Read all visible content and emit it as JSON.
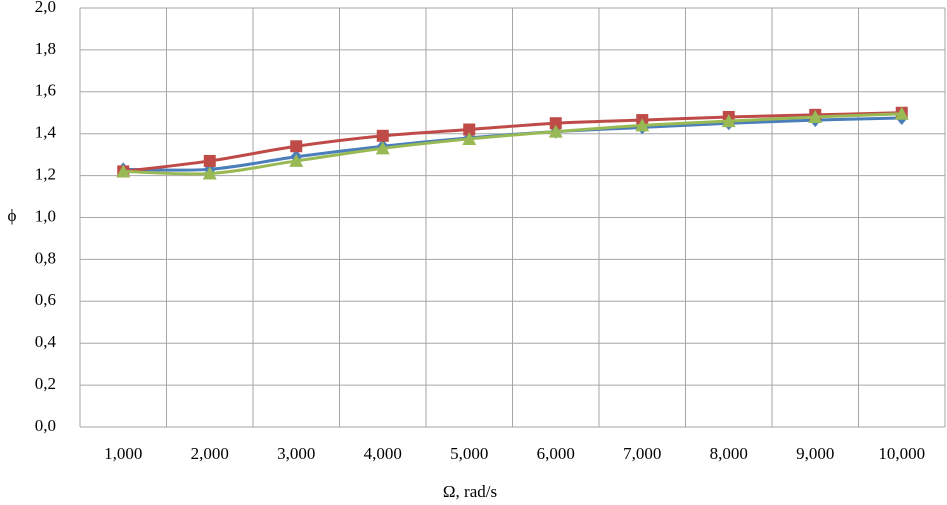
{
  "chart_data": {
    "type": "line",
    "x_label": "Ω, rad/s",
    "y_label": "ϕ",
    "categories": [
      "1,000",
      "2,000",
      "3,000",
      "4,000",
      "5,000",
      "6,000",
      "7,000",
      "8,000",
      "9,000",
      "10,000"
    ],
    "series": [
      {
        "color": "#4a7ebb",
        "marker": "diamond",
        "values": [
          1.23,
          1.23,
          1.29,
          1.34,
          1.38,
          1.41,
          1.43,
          1.45,
          1.465,
          1.475
        ]
      },
      {
        "color": "#be4b48",
        "marker": "square",
        "values": [
          1.22,
          1.27,
          1.34,
          1.39,
          1.42,
          1.45,
          1.465,
          1.48,
          1.49,
          1.5
        ]
      },
      {
        "color": "#98b954",
        "marker": "triangle",
        "values": [
          1.22,
          1.21,
          1.27,
          1.33,
          1.375,
          1.41,
          1.44,
          1.46,
          1.48,
          1.495
        ]
      }
    ],
    "ylim": [
      0,
      2
    ],
    "yticks": [
      {
        "value": 0,
        "label": "0,0"
      },
      {
        "value": 0.2,
        "label": "0,2"
      },
      {
        "value": 0.4,
        "label": "0,4"
      },
      {
        "value": 0.6,
        "label": "0,6"
      },
      {
        "value": 0.8,
        "label": "0,8"
      },
      {
        "value": 1,
        "label": "1,0"
      },
      {
        "value": 1.2,
        "label": "1,2"
      },
      {
        "value": 1.4,
        "label": "1,4"
      },
      {
        "value": 1.6,
        "label": "1,6"
      },
      {
        "value": 1.8,
        "label": "1,8"
      },
      {
        "value": 2,
        "label": "2,0"
      }
    ],
    "grid": true
  }
}
